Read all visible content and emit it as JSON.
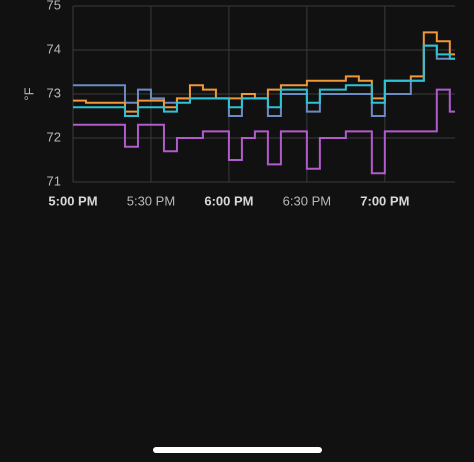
{
  "chart_data": {
    "type": "line",
    "step": true,
    "y_label": "°F",
    "x": [
      1020,
      1025,
      1030,
      1035,
      1040,
      1045,
      1050,
      1055,
      1060,
      1065,
      1070,
      1075,
      1080,
      1085,
      1090,
      1095,
      1100,
      1105,
      1110,
      1115,
      1120,
      1125,
      1130,
      1135,
      1140,
      1145,
      1150,
      1155,
      1160,
      1165
    ],
    "series": [
      {
        "color": "#b25bcc",
        "values": [
          72.3,
          72.3,
          72.3,
          72.3,
          71.8,
          72.3,
          72.3,
          71.7,
          72.0,
          72.0,
          72.15,
          72.15,
          71.5,
          72.0,
          72.15,
          71.4,
          72.15,
          72.15,
          71.3,
          72.0,
          72.0,
          72.15,
          72.15,
          71.2,
          72.15,
          72.15,
          72.15,
          72.15,
          73.1,
          72.6
        ]
      },
      {
        "color": "#6a8cc2",
        "values": [
          73.2,
          73.2,
          73.2,
          73.2,
          72.8,
          73.1,
          72.9,
          72.8,
          72.9,
          72.9,
          72.9,
          72.9,
          72.5,
          72.9,
          72.9,
          72.5,
          73.0,
          73.0,
          72.6,
          73.0,
          73.0,
          73.0,
          73.0,
          72.5,
          73.0,
          73.0,
          73.3,
          74.1,
          73.8,
          73.8
        ]
      },
      {
        "color": "#f0973a",
        "values": [
          72.85,
          72.8,
          72.8,
          72.8,
          72.6,
          72.85,
          72.85,
          72.7,
          72.9,
          73.2,
          73.1,
          72.9,
          72.9,
          73.0,
          72.9,
          73.1,
          73.2,
          73.2,
          73.3,
          73.3,
          73.3,
          73.4,
          73.3,
          72.9,
          73.3,
          73.3,
          73.4,
          74.4,
          74.2,
          73.9
        ]
      },
      {
        "color": "#2ec3d4",
        "values": [
          72.7,
          72.7,
          72.7,
          72.7,
          72.5,
          72.7,
          72.7,
          72.6,
          72.8,
          72.9,
          72.9,
          72.9,
          72.7,
          72.9,
          72.9,
          72.7,
          73.1,
          73.1,
          72.8,
          73.1,
          73.1,
          73.2,
          73.2,
          72.8,
          73.3,
          73.3,
          73.3,
          74.1,
          73.9,
          73.8
        ]
      }
    ],
    "xlim": [
      1020,
      1167
    ],
    "xticks": [
      {
        "value": 1020,
        "label": "5:00 PM"
      },
      {
        "value": 1050,
        "label": "5:30 PM"
      },
      {
        "value": 1080,
        "label": "6:00 PM"
      },
      {
        "value": 1110,
        "label": "6:30 PM"
      },
      {
        "value": 1140,
        "label": "7:00 PM"
      }
    ],
    "ylim": [
      71,
      75
    ],
    "yticks": [
      71,
      72,
      73,
      74,
      75
    ],
    "grid": true
  }
}
